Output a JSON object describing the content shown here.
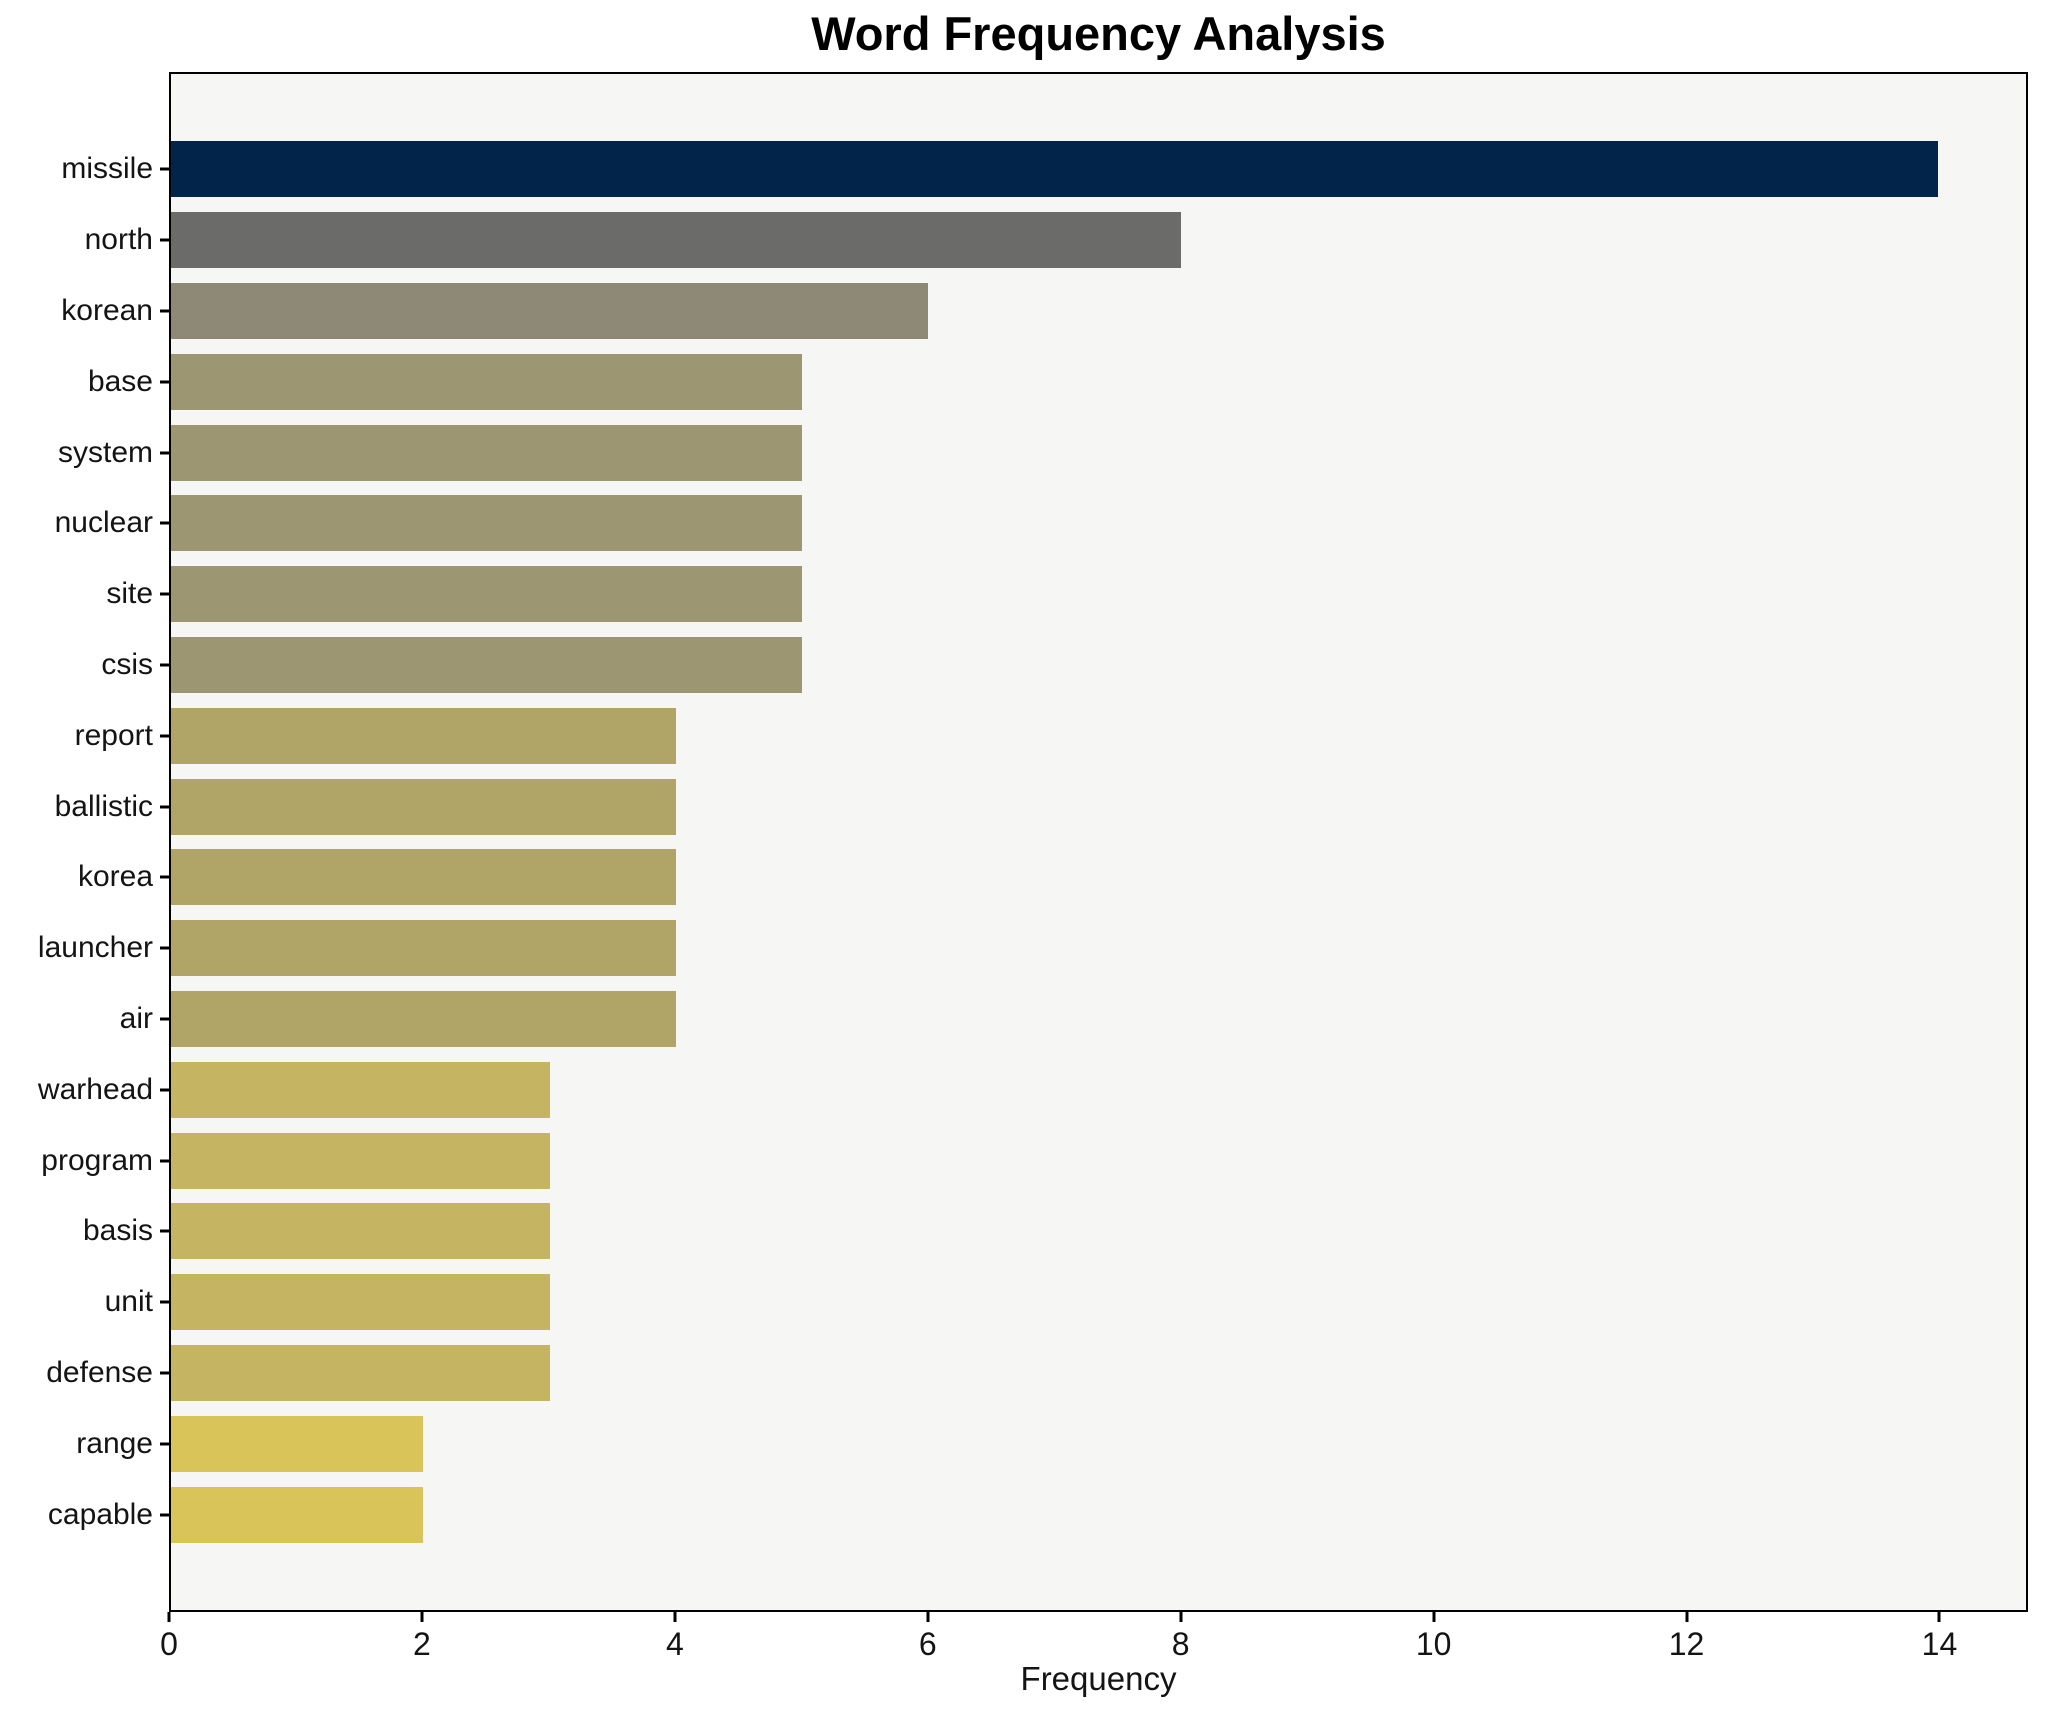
{
  "chart_data": {
    "type": "bar",
    "orientation": "horizontal",
    "title": "Word Frequency Analysis",
    "xlabel": "Frequency",
    "ylabel": "",
    "categories": [
      "missile",
      "north",
      "korean",
      "base",
      "system",
      "nuclear",
      "site",
      "csis",
      "report",
      "ballistic",
      "korea",
      "launcher",
      "air",
      "warhead",
      "program",
      "basis",
      "unit",
      "defense",
      "range",
      "capable"
    ],
    "values": [
      14,
      8,
      6,
      5,
      5,
      5,
      5,
      5,
      4,
      4,
      4,
      4,
      4,
      3,
      3,
      3,
      3,
      3,
      2,
      2
    ],
    "bar_colors": [
      "#02234a",
      "#6b6b6a",
      "#8e8877",
      "#9d9672",
      "#9d9672",
      "#9d9672",
      "#9d9672",
      "#9d9672",
      "#b0a566",
      "#b0a566",
      "#b0a566",
      "#b0a566",
      "#b0a566",
      "#c5b462",
      "#c5b462",
      "#c5b462",
      "#c5b462",
      "#c5b462",
      "#d9c45a",
      "#d9c45a"
    ],
    "x_ticks": [
      0,
      2,
      4,
      6,
      8,
      10,
      12,
      14
    ],
    "xlim": [
      0,
      14.7
    ],
    "grid": false,
    "legend": "none",
    "plot_background": "#f6f6f5",
    "figure_background": "#ffffff",
    "spine_color": "#000000"
  }
}
